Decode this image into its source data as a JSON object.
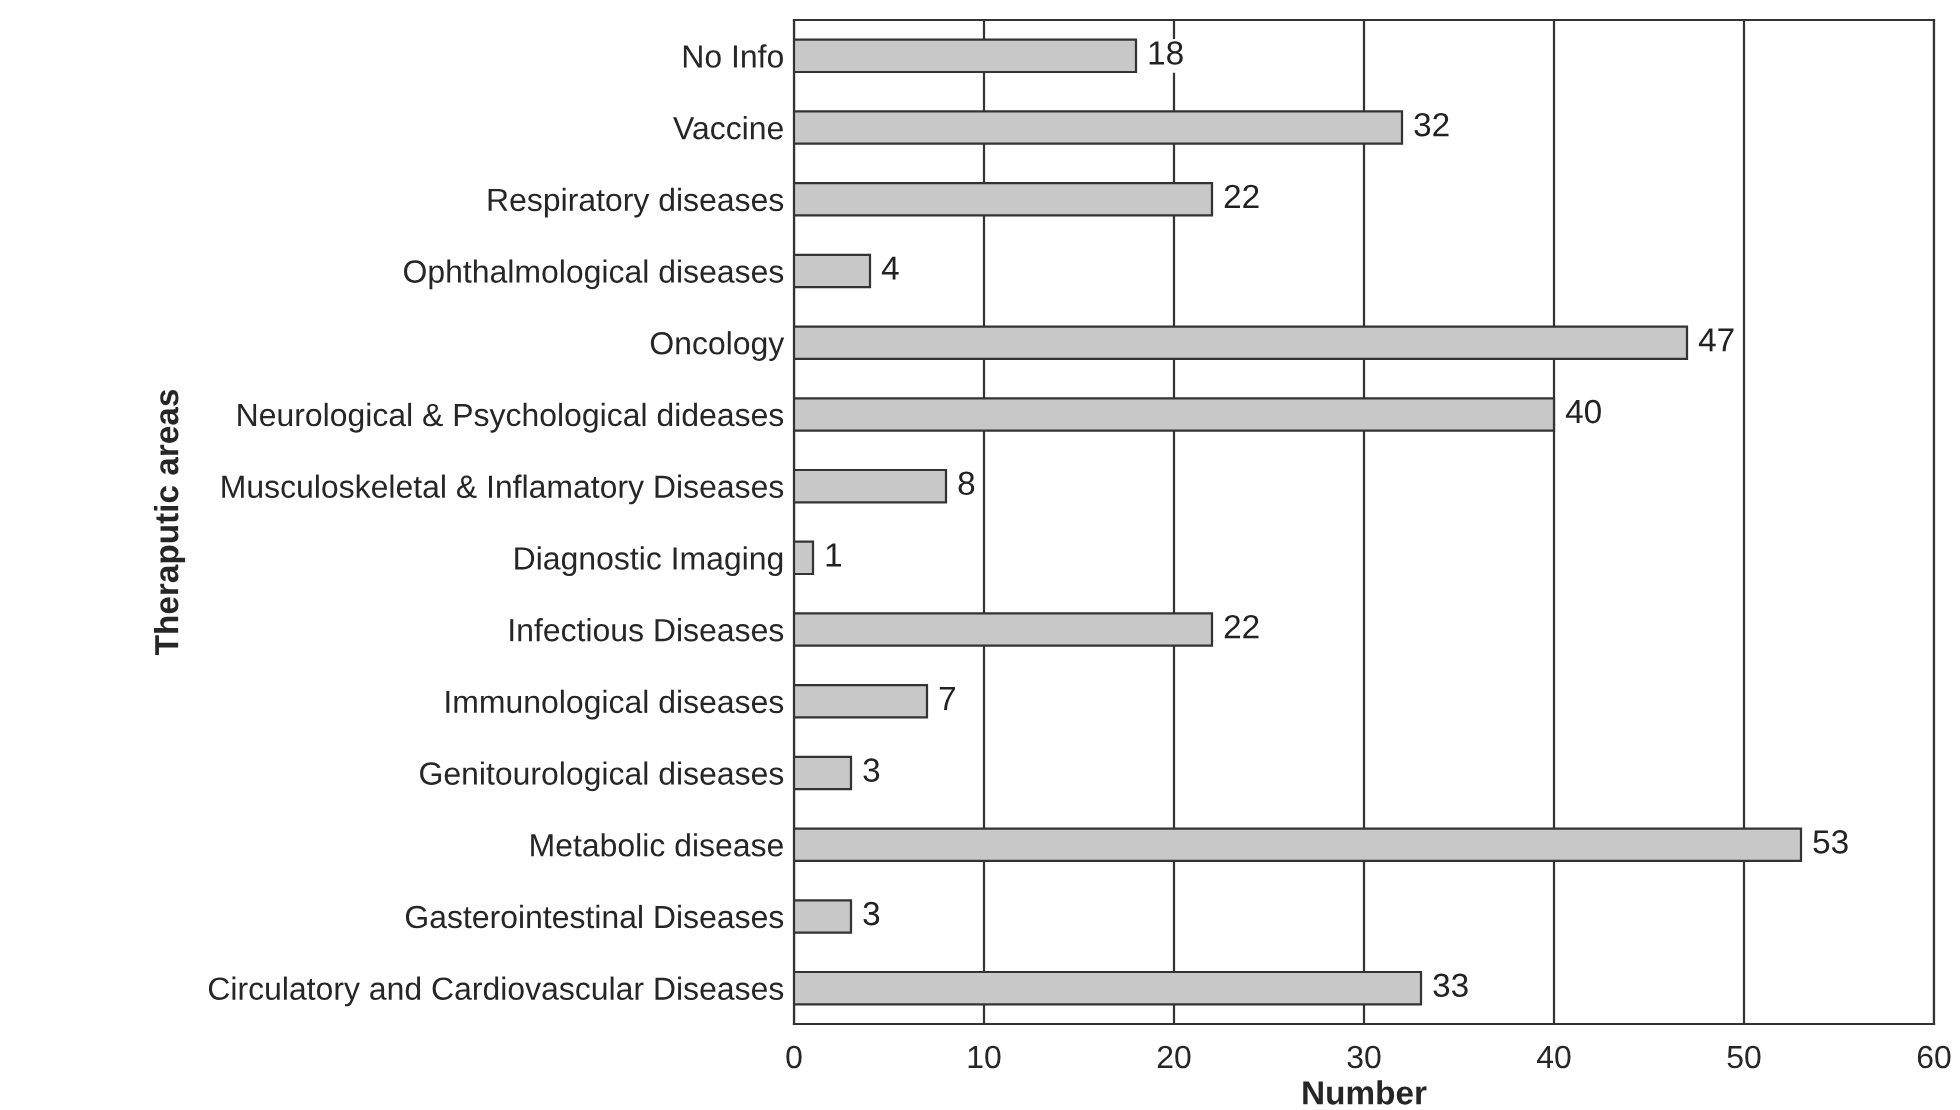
{
  "chart_data": {
    "type": "bar",
    "orientation": "horizontal",
    "xlabel": "Number",
    "ylabel": "Theraputic areas",
    "categories": [
      "No Info",
      "Vaccine",
      "Respiratory diseases",
      "Ophthalmological diseases",
      "Oncology",
      "Neurological & Psychological dideases",
      "Musculoskeletal & Inflamatory Diseases",
      "Diagnostic Imaging",
      "Infectious Diseases",
      "Immunological diseases",
      "Genitourological diseases",
      "Metabolic disease",
      "Gasterointestinal Diseases",
      "Circulatory and Cardiovascular Diseases"
    ],
    "values": [
      18,
      32,
      22,
      4,
      47,
      40,
      8,
      1,
      22,
      7,
      3,
      53,
      3,
      33
    ],
    "color": "#c8c8c8",
    "xlim": [
      0,
      60
    ],
    "xticks": [
      0,
      10,
      20,
      30,
      40,
      50,
      60
    ],
    "grid": "x",
    "data_labels": true,
    "legend": false
  }
}
